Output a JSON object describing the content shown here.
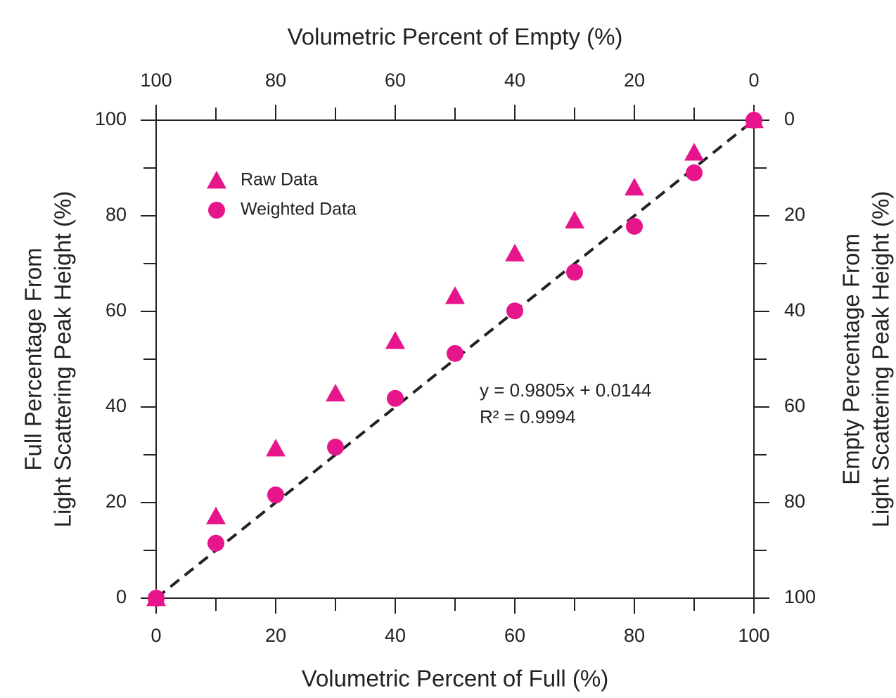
{
  "chart_data": {
    "type": "scatter",
    "x_title": "Volumetric Percent of Full (%)",
    "x2_title": "Volumetric Percent of Empty (%)",
    "y_title": [
      "Full Percentage From",
      "Light Scattering Peak Height (%)"
    ],
    "y2_title": [
      "Empty Percentage From",
      "Light Scattering Peak Height (%)"
    ],
    "xlim": [
      0,
      100
    ],
    "xticks": [
      0,
      20,
      40,
      60,
      80,
      100
    ],
    "xminor": [
      10,
      30,
      50,
      70,
      90
    ],
    "ylim": [
      0,
      100
    ],
    "yticks": [
      0,
      20,
      40,
      60,
      80,
      100
    ],
    "yminor": [
      10,
      30,
      50,
      70,
      90
    ],
    "x2lim": [
      100,
      0
    ],
    "x2ticks": [
      100,
      80,
      60,
      40,
      20,
      0
    ],
    "x2minor": [
      90,
      70,
      50,
      30,
      10
    ],
    "y2lim": [
      100,
      0
    ],
    "y2ticks": [
      0,
      20,
      40,
      60,
      80,
      100
    ],
    "y2minor": [
      10,
      30,
      50,
      70,
      90
    ],
    "x": [
      0,
      10,
      20,
      30,
      40,
      50,
      60,
      70,
      80,
      90,
      100
    ],
    "series": [
      {
        "name": "Raw Data",
        "marker": "triangle",
        "color": "#e6158c",
        "values": [
          0,
          17.1,
          31.3,
          42.8,
          53.8,
          63.2,
          72.1,
          79.0,
          85.9,
          93.2,
          100
        ]
      },
      {
        "name": "Weighted Data",
        "marker": "circle",
        "color": "#e6158c",
        "values": [
          0,
          11.5,
          21.6,
          31.6,
          41.8,
          51.2,
          60.1,
          68.2,
          77.8,
          89.0,
          100
        ]
      }
    ],
    "trendline": {
      "x": [
        0,
        100
      ],
      "values": [
        0,
        100
      ],
      "color": "#222",
      "dashed": true
    },
    "annotation": [
      "y = 0.9805x + 0.0144",
      "R² = 0.9994"
    ],
    "legend": "upper-left"
  }
}
